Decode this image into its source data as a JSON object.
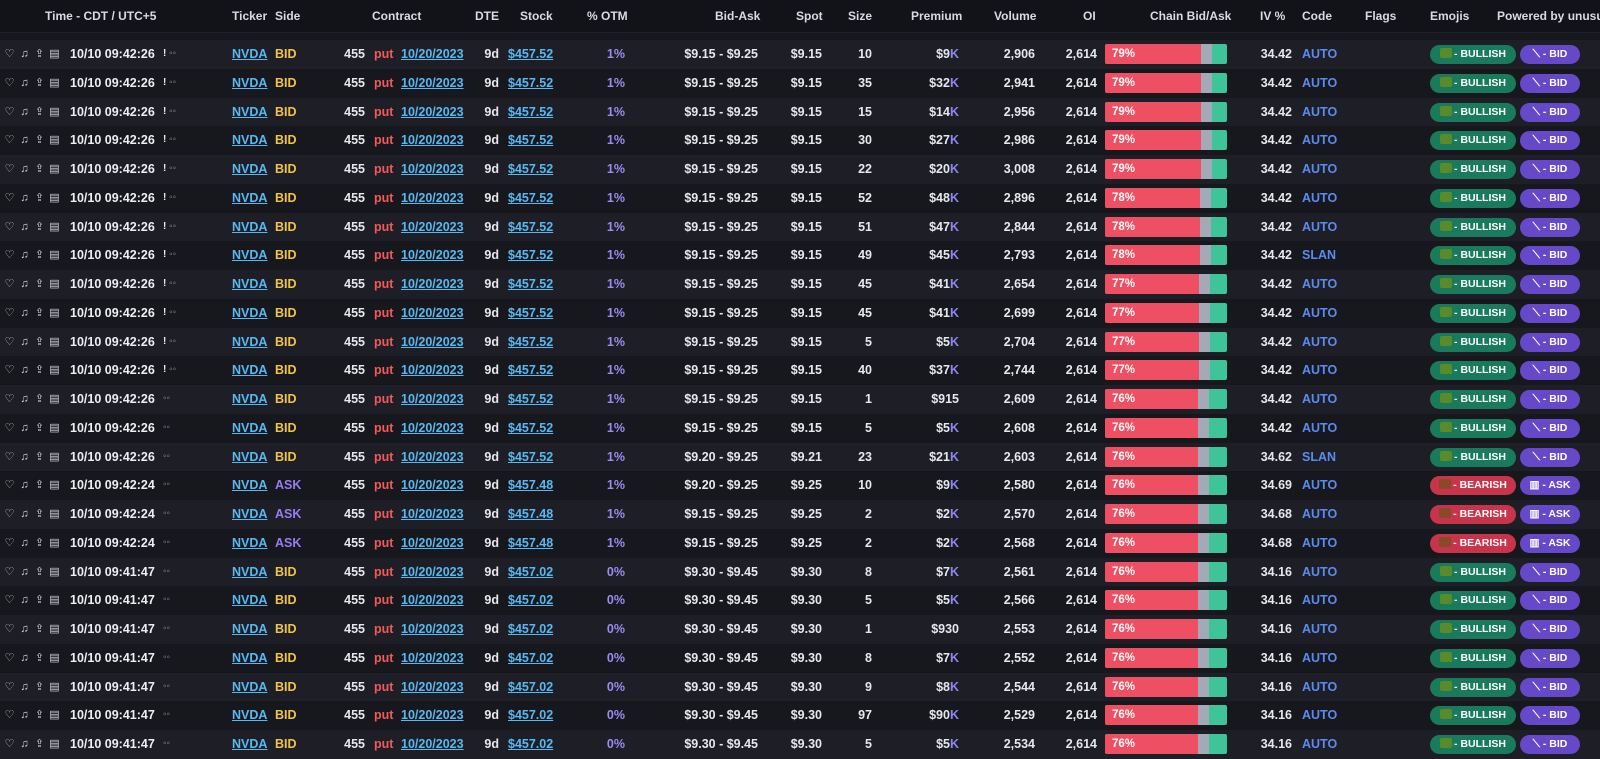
{
  "headers": {
    "time": "Time - CDT / UTC+5",
    "ticker": "Ticker",
    "side": "Side",
    "contract": "Contract",
    "dte": "DTE",
    "stock": "Stock",
    "otm": "% OTM",
    "bidask": "Bid-Ask",
    "spot": "Spot",
    "size": "Size",
    "premium": "Premium",
    "volume": "Volume",
    "oi": "OI",
    "chain": "Chain Bid/Ask",
    "iv": "IV %",
    "code": "Code",
    "flags": "Flags",
    "emojis": "Emojis",
    "powered": "Powered by unusua"
  },
  "icons": {
    "row_actions": [
      "heart-icon",
      "music-note-icon",
      "share-icon",
      "clipboard-icon"
    ],
    "trade_icon": "sweep-icon"
  },
  "colors": {
    "bid": "#f2c24b",
    "ask": "#9a7cf2",
    "put": "#f25a5a",
    "link": "#57b8f2",
    "bullish": "#1a7b5c",
    "bearish": "#c8344a",
    "chain_bid": "#ef4f62",
    "chain_mid": "#a4a9b7",
    "chain_ask": "#3fc49a"
  },
  "rows": [
    {
      "time": "10/10 09:42:26",
      "mark": "!",
      "ticker": "NVDA",
      "side": "BID",
      "strike": "455",
      "type": "put",
      "exp": "10/20/2023",
      "dte": "9d",
      "stock": "$457.52",
      "otm": "1%",
      "bidask": "$9.15 - $9.25",
      "spot": "$9.15",
      "size": "10",
      "prem": "$9",
      "unit": "K",
      "volume": "2,906",
      "oi": "2,614",
      "chain_pct": "79%",
      "bid_frac": 0.79,
      "iv": "34.42",
      "code": "AUTO",
      "sentiment": "- BULLISH",
      "side_pill": "- BID"
    },
    {
      "time": "10/10 09:42:26",
      "mark": "!",
      "ticker": "NVDA",
      "side": "BID",
      "strike": "455",
      "type": "put",
      "exp": "10/20/2023",
      "dte": "9d",
      "stock": "$457.52",
      "otm": "1%",
      "bidask": "$9.15 - $9.25",
      "spot": "$9.15",
      "size": "35",
      "prem": "$32",
      "unit": "K",
      "volume": "2,941",
      "oi": "2,614",
      "chain_pct": "79%",
      "bid_frac": 0.79,
      "iv": "34.42",
      "code": "AUTO",
      "sentiment": "- BULLISH",
      "side_pill": "- BID"
    },
    {
      "time": "10/10 09:42:26",
      "mark": "!",
      "ticker": "NVDA",
      "side": "BID",
      "strike": "455",
      "type": "put",
      "exp": "10/20/2023",
      "dte": "9d",
      "stock": "$457.52",
      "otm": "1%",
      "bidask": "$9.15 - $9.25",
      "spot": "$9.15",
      "size": "15",
      "prem": "$14",
      "unit": "K",
      "volume": "2,956",
      "oi": "2,614",
      "chain_pct": "79%",
      "bid_frac": 0.79,
      "iv": "34.42",
      "code": "AUTO",
      "sentiment": "- BULLISH",
      "side_pill": "- BID"
    },
    {
      "time": "10/10 09:42:26",
      "mark": "!",
      "ticker": "NVDA",
      "side": "BID",
      "strike": "455",
      "type": "put",
      "exp": "10/20/2023",
      "dte": "9d",
      "stock": "$457.52",
      "otm": "1%",
      "bidask": "$9.15 - $9.25",
      "spot": "$9.15",
      "size": "30",
      "prem": "$27",
      "unit": "K",
      "volume": "2,986",
      "oi": "2,614",
      "chain_pct": "79%",
      "bid_frac": 0.79,
      "iv": "34.42",
      "code": "AUTO",
      "sentiment": "- BULLISH",
      "side_pill": "- BID"
    },
    {
      "time": "10/10 09:42:26",
      "mark": "!",
      "ticker": "NVDA",
      "side": "BID",
      "strike": "455",
      "type": "put",
      "exp": "10/20/2023",
      "dte": "9d",
      "stock": "$457.52",
      "otm": "1%",
      "bidask": "$9.15 - $9.25",
      "spot": "$9.15",
      "size": "22",
      "prem": "$20",
      "unit": "K",
      "volume": "3,008",
      "oi": "2,614",
      "chain_pct": "79%",
      "bid_frac": 0.79,
      "iv": "34.42",
      "code": "AUTO",
      "sentiment": "- BULLISH",
      "side_pill": "- BID"
    },
    {
      "time": "10/10 09:42:26",
      "mark": "!",
      "ticker": "NVDA",
      "side": "BID",
      "strike": "455",
      "type": "put",
      "exp": "10/20/2023",
      "dte": "9d",
      "stock": "$457.52",
      "otm": "1%",
      "bidask": "$9.15 - $9.25",
      "spot": "$9.15",
      "size": "52",
      "prem": "$48",
      "unit": "K",
      "volume": "2,896",
      "oi": "2,614",
      "chain_pct": "78%",
      "bid_frac": 0.78,
      "iv": "34.42",
      "code": "AUTO",
      "sentiment": "- BULLISH",
      "side_pill": "- BID"
    },
    {
      "time": "10/10 09:42:26",
      "mark": "!",
      "ticker": "NVDA",
      "side": "BID",
      "strike": "455",
      "type": "put",
      "exp": "10/20/2023",
      "dte": "9d",
      "stock": "$457.52",
      "otm": "1%",
      "bidask": "$9.15 - $9.25",
      "spot": "$9.15",
      "size": "51",
      "prem": "$47",
      "unit": "K",
      "volume": "2,844",
      "oi": "2,614",
      "chain_pct": "78%",
      "bid_frac": 0.78,
      "iv": "34.42",
      "code": "AUTO",
      "sentiment": "- BULLISH",
      "side_pill": "- BID"
    },
    {
      "time": "10/10 09:42:26",
      "mark": "!",
      "ticker": "NVDA",
      "side": "BID",
      "strike": "455",
      "type": "put",
      "exp": "10/20/2023",
      "dte": "9d",
      "stock": "$457.52",
      "otm": "1%",
      "bidask": "$9.15 - $9.25",
      "spot": "$9.15",
      "size": "49",
      "prem": "$45",
      "unit": "K",
      "volume": "2,793",
      "oi": "2,614",
      "chain_pct": "78%",
      "bid_frac": 0.78,
      "iv": "34.42",
      "code": "SLAN",
      "sentiment": "- BULLISH",
      "side_pill": "- BID"
    },
    {
      "time": "10/10 09:42:26",
      "mark": "!",
      "ticker": "NVDA",
      "side": "BID",
      "strike": "455",
      "type": "put",
      "exp": "10/20/2023",
      "dte": "9d",
      "stock": "$457.52",
      "otm": "1%",
      "bidask": "$9.15 - $9.25",
      "spot": "$9.15",
      "size": "45",
      "prem": "$41",
      "unit": "K",
      "volume": "2,654",
      "oi": "2,614",
      "chain_pct": "77%",
      "bid_frac": 0.77,
      "iv": "34.42",
      "code": "AUTO",
      "sentiment": "- BULLISH",
      "side_pill": "- BID"
    },
    {
      "time": "10/10 09:42:26",
      "mark": "!",
      "ticker": "NVDA",
      "side": "BID",
      "strike": "455",
      "type": "put",
      "exp": "10/20/2023",
      "dte": "9d",
      "stock": "$457.52",
      "otm": "1%",
      "bidask": "$9.15 - $9.25",
      "spot": "$9.15",
      "size": "45",
      "prem": "$41",
      "unit": "K",
      "volume": "2,699",
      "oi": "2,614",
      "chain_pct": "77%",
      "bid_frac": 0.77,
      "iv": "34.42",
      "code": "AUTO",
      "sentiment": "- BULLISH",
      "side_pill": "- BID"
    },
    {
      "time": "10/10 09:42:26",
      "mark": "!",
      "ticker": "NVDA",
      "side": "BID",
      "strike": "455",
      "type": "put",
      "exp": "10/20/2023",
      "dte": "9d",
      "stock": "$457.52",
      "otm": "1%",
      "bidask": "$9.15 - $9.25",
      "spot": "$9.15",
      "size": "5",
      "prem": "$5",
      "unit": "K",
      "volume": "2,704",
      "oi": "2,614",
      "chain_pct": "77%",
      "bid_frac": 0.77,
      "iv": "34.42",
      "code": "AUTO",
      "sentiment": "- BULLISH",
      "side_pill": "- BID"
    },
    {
      "time": "10/10 09:42:26",
      "mark": "!",
      "ticker": "NVDA",
      "side": "BID",
      "strike": "455",
      "type": "put",
      "exp": "10/20/2023",
      "dte": "9d",
      "stock": "$457.52",
      "otm": "1%",
      "bidask": "$9.15 - $9.25",
      "spot": "$9.15",
      "size": "40",
      "prem": "$37",
      "unit": "K",
      "volume": "2,744",
      "oi": "2,614",
      "chain_pct": "77%",
      "bid_frac": 0.77,
      "iv": "34.42",
      "code": "AUTO",
      "sentiment": "- BULLISH",
      "side_pill": "- BID"
    },
    {
      "time": "10/10 09:42:26",
      "mark": "",
      "ticker": "NVDA",
      "side": "BID",
      "strike": "455",
      "type": "put",
      "exp": "10/20/2023",
      "dte": "9d",
      "stock": "$457.52",
      "otm": "1%",
      "bidask": "$9.15 - $9.25",
      "spot": "$9.15",
      "size": "1",
      "prem": "$915",
      "unit": "",
      "volume": "2,609",
      "oi": "2,614",
      "chain_pct": "76%",
      "bid_frac": 0.76,
      "iv": "34.42",
      "code": "AUTO",
      "sentiment": "- BULLISH",
      "side_pill": "- BID"
    },
    {
      "time": "10/10 09:42:26",
      "mark": "",
      "ticker": "NVDA",
      "side": "BID",
      "strike": "455",
      "type": "put",
      "exp": "10/20/2023",
      "dte": "9d",
      "stock": "$457.52",
      "otm": "1%",
      "bidask": "$9.15 - $9.25",
      "spot": "$9.15",
      "size": "5",
      "prem": "$5",
      "unit": "K",
      "volume": "2,608",
      "oi": "2,614",
      "chain_pct": "76%",
      "bid_frac": 0.76,
      "iv": "34.42",
      "code": "AUTO",
      "sentiment": "- BULLISH",
      "side_pill": "- BID"
    },
    {
      "time": "10/10 09:42:26",
      "mark": "",
      "ticker": "NVDA",
      "side": "BID",
      "strike": "455",
      "type": "put",
      "exp": "10/20/2023",
      "dte": "9d",
      "stock": "$457.52",
      "otm": "1%",
      "bidask": "$9.20 - $9.25",
      "spot": "$9.21",
      "size": "23",
      "prem": "$21",
      "unit": "K",
      "volume": "2,603",
      "oi": "2,614",
      "chain_pct": "76%",
      "bid_frac": 0.76,
      "iv": "34.62",
      "code": "SLAN",
      "sentiment": "- BULLISH",
      "side_pill": "- BID"
    },
    {
      "time": "10/10 09:42:24",
      "mark": "",
      "ticker": "NVDA",
      "side": "ASK",
      "strike": "455",
      "type": "put",
      "exp": "10/20/2023",
      "dte": "9d",
      "stock": "$457.48",
      "otm": "1%",
      "bidask": "$9.20 - $9.25",
      "spot": "$9.25",
      "size": "10",
      "prem": "$9",
      "unit": "K",
      "volume": "2,580",
      "oi": "2,614",
      "chain_pct": "76%",
      "bid_frac": 0.76,
      "iv": "34.69",
      "code": "AUTO",
      "sentiment": "- BEARISH",
      "side_pill": "- ASK"
    },
    {
      "time": "10/10 09:42:24",
      "mark": "",
      "ticker": "NVDA",
      "side": "ASK",
      "strike": "455",
      "type": "put",
      "exp": "10/20/2023",
      "dte": "9d",
      "stock": "$457.48",
      "otm": "1%",
      "bidask": "$9.15 - $9.25",
      "spot": "$9.25",
      "size": "2",
      "prem": "$2",
      "unit": "K",
      "volume": "2,570",
      "oi": "2,614",
      "chain_pct": "76%",
      "bid_frac": 0.76,
      "iv": "34.68",
      "code": "AUTO",
      "sentiment": "- BEARISH",
      "side_pill": "- ASK"
    },
    {
      "time": "10/10 09:42:24",
      "mark": "",
      "ticker": "NVDA",
      "side": "ASK",
      "strike": "455",
      "type": "put",
      "exp": "10/20/2023",
      "dte": "9d",
      "stock": "$457.48",
      "otm": "1%",
      "bidask": "$9.15 - $9.25",
      "spot": "$9.25",
      "size": "2",
      "prem": "$2",
      "unit": "K",
      "volume": "2,568",
      "oi": "2,614",
      "chain_pct": "76%",
      "bid_frac": 0.76,
      "iv": "34.68",
      "code": "AUTO",
      "sentiment": "- BEARISH",
      "side_pill": "- ASK"
    },
    {
      "time": "10/10 09:41:47",
      "mark": "",
      "ticker": "NVDA",
      "side": "BID",
      "strike": "455",
      "type": "put",
      "exp": "10/20/2023",
      "dte": "9d",
      "stock": "$457.02",
      "otm": "0%",
      "bidask": "$9.30 - $9.45",
      "spot": "$9.30",
      "size": "8",
      "prem": "$7",
      "unit": "K",
      "volume": "2,561",
      "oi": "2,614",
      "chain_pct": "76%",
      "bid_frac": 0.76,
      "iv": "34.16",
      "code": "AUTO",
      "sentiment": "- BULLISH",
      "side_pill": "- BID"
    },
    {
      "time": "10/10 09:41:47",
      "mark": "",
      "ticker": "NVDA",
      "side": "BID",
      "strike": "455",
      "type": "put",
      "exp": "10/20/2023",
      "dte": "9d",
      "stock": "$457.02",
      "otm": "0%",
      "bidask": "$9.30 - $9.45",
      "spot": "$9.30",
      "size": "5",
      "prem": "$5",
      "unit": "K",
      "volume": "2,566",
      "oi": "2,614",
      "chain_pct": "76%",
      "bid_frac": 0.76,
      "iv": "34.16",
      "code": "AUTO",
      "sentiment": "- BULLISH",
      "side_pill": "- BID"
    },
    {
      "time": "10/10 09:41:47",
      "mark": "",
      "ticker": "NVDA",
      "side": "BID",
      "strike": "455",
      "type": "put",
      "exp": "10/20/2023",
      "dte": "9d",
      "stock": "$457.02",
      "otm": "0%",
      "bidask": "$9.30 - $9.45",
      "spot": "$9.30",
      "size": "1",
      "prem": "$930",
      "unit": "",
      "volume": "2,553",
      "oi": "2,614",
      "chain_pct": "76%",
      "bid_frac": 0.76,
      "iv": "34.16",
      "code": "AUTO",
      "sentiment": "- BULLISH",
      "side_pill": "- BID"
    },
    {
      "time": "10/10 09:41:47",
      "mark": "",
      "ticker": "NVDA",
      "side": "BID",
      "strike": "455",
      "type": "put",
      "exp": "10/20/2023",
      "dte": "9d",
      "stock": "$457.02",
      "otm": "0%",
      "bidask": "$9.30 - $9.45",
      "spot": "$9.30",
      "size": "8",
      "prem": "$7",
      "unit": "K",
      "volume": "2,552",
      "oi": "2,614",
      "chain_pct": "76%",
      "bid_frac": 0.76,
      "iv": "34.16",
      "code": "AUTO",
      "sentiment": "- BULLISH",
      "side_pill": "- BID"
    },
    {
      "time": "10/10 09:41:47",
      "mark": "",
      "ticker": "NVDA",
      "side": "BID",
      "strike": "455",
      "type": "put",
      "exp": "10/20/2023",
      "dte": "9d",
      "stock": "$457.02",
      "otm": "0%",
      "bidask": "$9.30 - $9.45",
      "spot": "$9.30",
      "size": "9",
      "prem": "$8",
      "unit": "K",
      "volume": "2,544",
      "oi": "2,614",
      "chain_pct": "76%",
      "bid_frac": 0.76,
      "iv": "34.16",
      "code": "AUTO",
      "sentiment": "- BULLISH",
      "side_pill": "- BID"
    },
    {
      "time": "10/10 09:41:47",
      "mark": "",
      "ticker": "NVDA",
      "side": "BID",
      "strike": "455",
      "type": "put",
      "exp": "10/20/2023",
      "dte": "9d",
      "stock": "$457.02",
      "otm": "0%",
      "bidask": "$9.30 - $9.45",
      "spot": "$9.30",
      "size": "97",
      "prem": "$90",
      "unit": "K",
      "volume": "2,529",
      "oi": "2,614",
      "chain_pct": "76%",
      "bid_frac": 0.76,
      "iv": "34.16",
      "code": "AUTO",
      "sentiment": "- BULLISH",
      "side_pill": "- BID"
    },
    {
      "time": "10/10 09:41:47",
      "mark": "",
      "ticker": "NVDA",
      "side": "BID",
      "strike": "455",
      "type": "put",
      "exp": "10/20/2023",
      "dte": "9d",
      "stock": "$457.02",
      "otm": "0%",
      "bidask": "$9.30 - $9.45",
      "spot": "$9.30",
      "size": "5",
      "prem": "$5",
      "unit": "K",
      "volume": "2,534",
      "oi": "2,614",
      "chain_pct": "76%",
      "bid_frac": 0.76,
      "iv": "34.16",
      "code": "AUTO",
      "sentiment": "- BULLISH",
      "side_pill": "- BID"
    }
  ]
}
